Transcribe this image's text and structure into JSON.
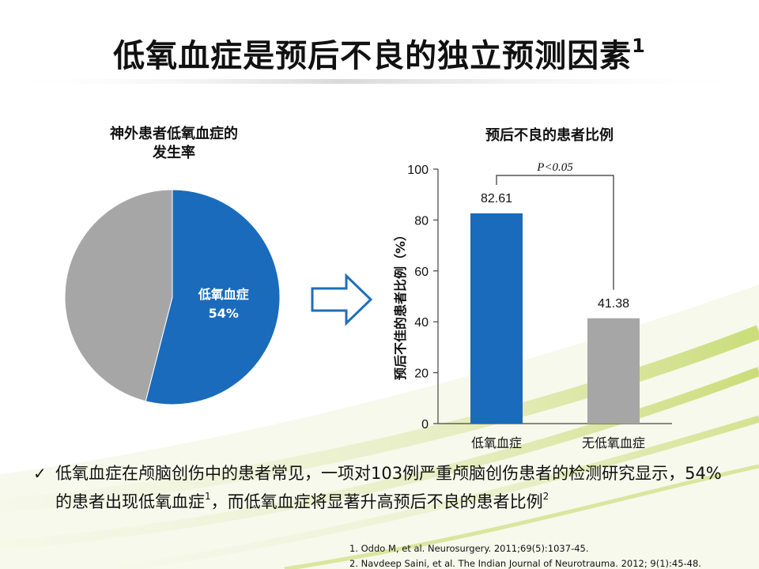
{
  "slide": {
    "title": "低氧血症是预后不良的独立预测因素",
    "title_sup": "1",
    "bullet": {
      "text_before_sup1": "低氧血症在颅脑创伤中的患者常见，一项对103例严重颅脑创伤患者的检测研究显示，54%的患者出现低氧血症",
      "sup1": "1",
      "text_after_sup1": "，而低氧血症将显著升高预后不良的患者比例",
      "sup2": "2"
    },
    "references": [
      "1.   Oddo M, et al. Neurosurgery. 2011;69(5):1037-45.",
      "2.   Navdeep Saini, et al. The Indian Journal of Neurotrauma. 2012; 9(1):45-48."
    ],
    "colors": {
      "blue": "#1a6bbb",
      "gray": "#a6a6a6"
    }
  },
  "chart_data": [
    {
      "type": "pie",
      "title": "神外患者低氧血症的发生率",
      "title_lines": [
        "神外患者低氧血症的",
        "发生率"
      ],
      "slices": [
        {
          "label": "低氧血症",
          "value": 54,
          "value_label": "54%",
          "color": "#1a6bbb"
        },
        {
          "label": "",
          "value": 46,
          "color": "#a6a6a6"
        }
      ]
    },
    {
      "type": "bar",
      "title": "预后不良的患者比例",
      "categories": [
        "低氧血症",
        "无低氧血症"
      ],
      "values": [
        82.61,
        41.38
      ],
      "value_labels": [
        "82.61",
        "41.38"
      ],
      "colors": [
        "#1a6bbb",
        "#a6a6a6"
      ],
      "ylabel": "预后不佳的患者比例（%）",
      "ylim": [
        0,
        100
      ],
      "yticks": [
        0,
        20,
        40,
        60,
        80,
        100
      ],
      "annotation": "P<0.05",
      "grid": false
    }
  ]
}
